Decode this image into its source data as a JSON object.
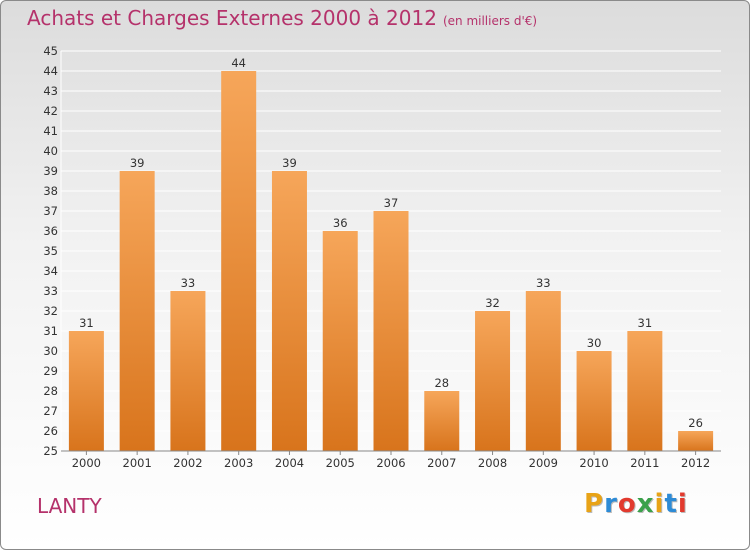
{
  "header": {
    "title": "Achats et Charges Externes 2000 à 2012",
    "subtitle": "(en milliers d'€)"
  },
  "footer": {
    "place": "LANTY",
    "brand_letters": [
      "P",
      "r",
      "o",
      "x",
      "i",
      "t",
      "i"
    ],
    "brand_colors": [
      "#e8a317",
      "#2d8bd6",
      "#e23a2e",
      "#3aa14a",
      "#e8a317",
      "#2d8bd6",
      "#e23a2e"
    ]
  },
  "colors": {
    "bar_light": "#f6a65a",
    "bar_dark": "#d8741c",
    "grid": "#ffffff",
    "title": "#b5326b"
  },
  "chart_data": {
    "type": "bar",
    "title": "Achats et Charges Externes 2000 à 2012",
    "subtitle": "(en milliers d'€)",
    "xlabel": "",
    "ylabel": "",
    "categories": [
      "2000",
      "2001",
      "2002",
      "2003",
      "2004",
      "2005",
      "2006",
      "2007",
      "2008",
      "2009",
      "2010",
      "2011",
      "2012"
    ],
    "values": [
      31,
      39,
      33,
      44,
      39,
      36,
      37,
      28,
      32,
      33,
      30,
      31,
      26
    ],
    "ylim": [
      25,
      45
    ],
    "yticks": [
      25,
      26,
      27,
      28,
      29,
      30,
      31,
      32,
      33,
      34,
      35,
      36,
      37,
      38,
      39,
      40,
      41,
      42,
      43,
      44,
      45
    ],
    "grid": true,
    "data_labels": true
  }
}
